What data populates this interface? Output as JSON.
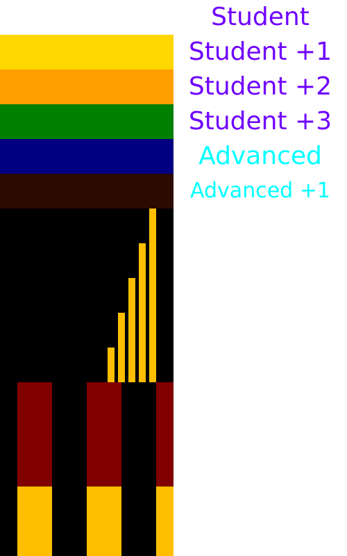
{
  "colors": {
    "label_purple": "#6f00ff",
    "label_cyan": "#00ffff",
    "panel_black": "#000000",
    "bar_gold": "#ffbf00",
    "belt_red": "#800000"
  },
  "ranks": [
    {
      "label": "Student",
      "color": "#ffffff",
      "label_color": "#6f00ff"
    },
    {
      "label": "Student +1",
      "color": "#ffd700",
      "label_color": "#6f00ff"
    },
    {
      "label": "Student +2",
      "color": "#ff9f00",
      "label_color": "#6f00ff"
    },
    {
      "label": "Student +3",
      "color": "#008000",
      "label_color": "#6f00ff"
    },
    {
      "label": "Advanced",
      "color": "#000080",
      "label_color": "#00ffff"
    },
    {
      "label": "Advanced +1",
      "color": "#2b0a00",
      "label_color": "#00ffff"
    }
  ]
}
